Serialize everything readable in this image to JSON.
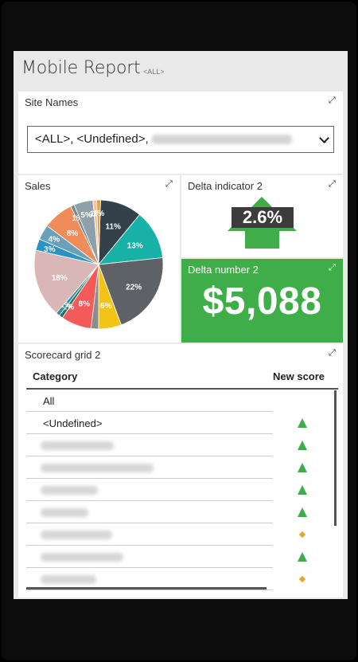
{
  "report": {
    "title": "Mobile Report",
    "filter_tag": "<ALL>"
  },
  "site_names": {
    "title": "Site Names",
    "selected_prefix": "<ALL>, <Undefined>,",
    "selected_suffix": "."
  },
  "sales": {
    "title": "Sales"
  },
  "chart_data": {
    "type": "pie",
    "slices": [
      {
        "label": "11%",
        "value": 11,
        "color": "#34404a"
      },
      {
        "label": "13%",
        "value": 13,
        "color": "#17b1a7"
      },
      {
        "label": "22%",
        "value": 22,
        "color": "#5e6266"
      },
      {
        "label": "6%",
        "value": 6,
        "color": "#f3c416"
      },
      {
        "label": "",
        "value": 2,
        "color": "#8c8c8c"
      },
      {
        "label": "8%",
        "value": 8,
        "color": "#f35a58"
      },
      {
        "label": "1%",
        "value": 1,
        "color": "#2b7360"
      },
      {
        "label": "1%",
        "value": 1,
        "color": "#2d8fa4"
      },
      {
        "label": "18%",
        "value": 18,
        "color": "#d9b7b6"
      },
      {
        "label": "3%",
        "value": 3,
        "color": "#2b92c5"
      },
      {
        "label": "4%",
        "value": 4,
        "color": "#6aa0ba"
      },
      {
        "label": "8%",
        "value": 8,
        "color": "#f08c5a"
      },
      {
        "label": "1%",
        "value": 1,
        "color": "#7d8890"
      },
      {
        "label": "5%",
        "value": 5,
        "color": "#8ea0a8"
      },
      {
        "label": "1%",
        "value": 1,
        "color": "#f6c3a3"
      },
      {
        "label": "1%",
        "value": 1,
        "color": "#e8a23c"
      }
    ]
  },
  "delta_indicator": {
    "title": "Delta indicator 2",
    "value": "2.6%",
    "arrow_color": "#3fae48"
  },
  "delta_number": {
    "title": "Delta number 2",
    "value": "$5,088"
  },
  "scorecard": {
    "title": "Scorecard grid 2",
    "col_category": "Category",
    "col_score": "New score",
    "rows": [
      {
        "category": "All",
        "status": ""
      },
      {
        "category": "<Undefined>",
        "status": "up"
      },
      {
        "category": "",
        "status": "up"
      },
      {
        "category": "",
        "status": "up"
      },
      {
        "category": "",
        "status": "up"
      },
      {
        "category": "",
        "status": "up"
      },
      {
        "category": "",
        "status": "neutral"
      },
      {
        "category": "",
        "status": "up"
      },
      {
        "category": "",
        "status": "neutral"
      }
    ]
  }
}
